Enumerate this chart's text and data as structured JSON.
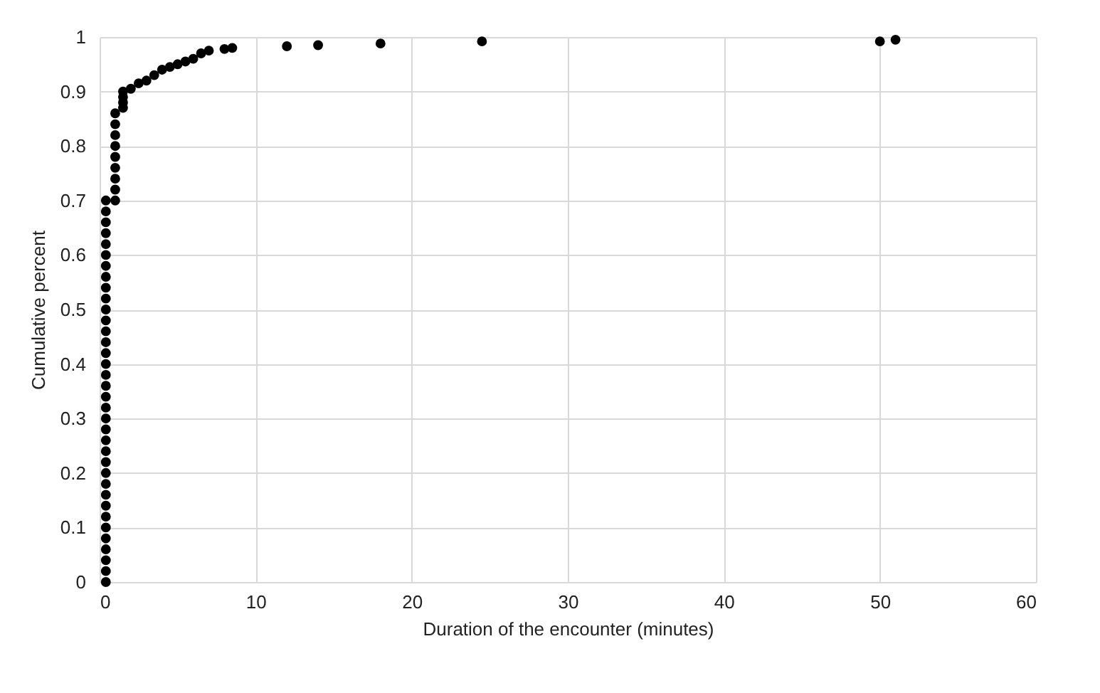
{
  "chart_data": {
    "type": "scatter",
    "xlabel": "Duration of the encounter (minutes)",
    "ylabel": "Cumulative percent",
    "xlim": [
      0,
      60
    ],
    "xticks": [
      0,
      10,
      20,
      30,
      40,
      50,
      60
    ],
    "ylim": [
      0,
      1
    ],
    "yticks": [
      0,
      0.1,
      0.2,
      0.3,
      0.4,
      0.5,
      0.6,
      0.7,
      0.8,
      0.9,
      1
    ],
    "grid": true,
    "marker": "circle",
    "series": [
      {
        "color": "#000000",
        "x": [
          0.4,
          0.4,
          0.4,
          0.4,
          0.4,
          0.4,
          0.4,
          0.4,
          0.4,
          0.4,
          0.4,
          0.4,
          0.4,
          0.4,
          0.4,
          0.4,
          0.4,
          0.4,
          0.4,
          0.4,
          0.4,
          0.4,
          0.4,
          0.4,
          0.4,
          0.4,
          0.4,
          0.4,
          0.4,
          0.4,
          0.4,
          0.4,
          0.4,
          0.4,
          0.4,
          0.4,
          1,
          1,
          1,
          1,
          1,
          1,
          1,
          1,
          1,
          1.5,
          1.5,
          1.5,
          1.5,
          2,
          2.5,
          3,
          3.5,
          4,
          4.5,
          5,
          5.5,
          6,
          6.5,
          7,
          8,
          8.5,
          12,
          14,
          18,
          24.5,
          50,
          51
        ],
        "values": [
          0,
          0.02,
          0.04,
          0.06,
          0.08,
          0.1,
          0.12,
          0.14,
          0.16,
          0.18,
          0.2,
          0.22,
          0.24,
          0.26,
          0.28,
          0.3,
          0.32,
          0.34,
          0.36,
          0.38,
          0.4,
          0.42,
          0.44,
          0.46,
          0.48,
          0.5,
          0.52,
          0.54,
          0.56,
          0.58,
          0.6,
          0.62,
          0.64,
          0.66,
          0.68,
          0.7,
          0.7,
          0.72,
          0.74,
          0.76,
          0.78,
          0.8,
          0.82,
          0.84,
          0.86,
          0.87,
          0.88,
          0.89,
          0.9,
          0.905,
          0.915,
          0.92,
          0.93,
          0.94,
          0.945,
          0.95,
          0.955,
          0.96,
          0.97,
          0.975,
          0.978,
          0.98,
          0.983,
          0.985,
          0.988,
          0.992,
          0.992,
          0.995
        ]
      }
    ]
  }
}
